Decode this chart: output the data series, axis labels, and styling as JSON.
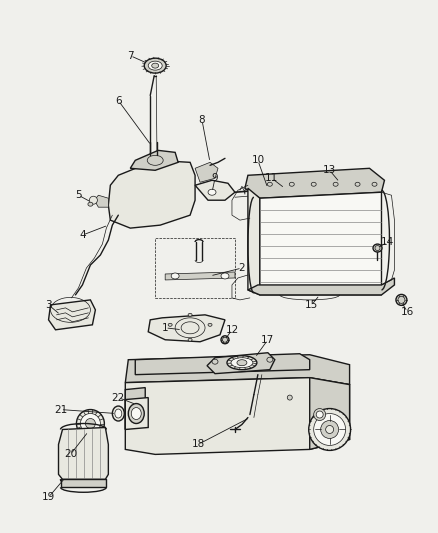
{
  "background_color": "#f0f0ec",
  "line_color": "#1a1a1a",
  "label_color": "#1a1a1a",
  "label_fontsize": 7.5,
  "lw_main": 1.0,
  "lw_thin": 0.5,
  "lw_thick": 1.4
}
